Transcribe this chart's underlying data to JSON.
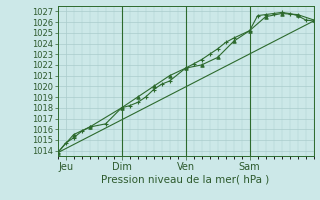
{
  "bg_color": "#cce8e8",
  "plot_bg_color": "#cce8e8",
  "grid_color": "#aacccc",
  "line_color": "#2d6a2d",
  "title": "Pression niveau de la mer( hPa )",
  "ylim": [
    1013.5,
    1027.5
  ],
  "yticks": [
    1014,
    1015,
    1016,
    1017,
    1018,
    1019,
    1020,
    1021,
    1022,
    1023,
    1024,
    1025,
    1026,
    1027
  ],
  "xlim": [
    0,
    96
  ],
  "xtick_positions": [
    3,
    24,
    48,
    72
  ],
  "xtick_labels": [
    "Jeu",
    "Dim",
    "Ven",
    "Sam"
  ],
  "vline_positions": [
    24,
    48,
    72
  ],
  "series1_x": [
    0,
    3,
    6,
    9,
    12,
    18,
    24,
    27,
    30,
    33,
    36,
    39,
    42,
    48,
    51,
    54,
    57,
    60,
    63,
    66,
    72,
    75,
    78,
    81,
    84,
    87,
    90,
    93,
    96
  ],
  "series1_y": [
    1013.8,
    1014.7,
    1015.2,
    1015.8,
    1016.2,
    1016.5,
    1018.0,
    1018.2,
    1018.5,
    1019.0,
    1019.7,
    1020.2,
    1020.5,
    1021.7,
    1022.1,
    1022.5,
    1023.0,
    1023.5,
    1024.1,
    1024.5,
    1025.2,
    1026.6,
    1026.7,
    1026.8,
    1026.9,
    1026.8,
    1026.6,
    1026.2,
    1026.1
  ],
  "series2_x": [
    0,
    6,
    12,
    24,
    30,
    36,
    42,
    48,
    54,
    60,
    66,
    72,
    78,
    84,
    90,
    96
  ],
  "series2_y": [
    1013.8,
    1015.5,
    1016.2,
    1018.0,
    1019.0,
    1020.0,
    1021.0,
    1021.7,
    1022.0,
    1022.7,
    1024.2,
    1025.2,
    1026.5,
    1026.8,
    1026.7,
    1026.2
  ],
  "series3_x": [
    0,
    96
  ],
  "series3_y": [
    1013.8,
    1026.1
  ],
  "figsize": [
    3.2,
    2.0
  ],
  "dpi": 100
}
